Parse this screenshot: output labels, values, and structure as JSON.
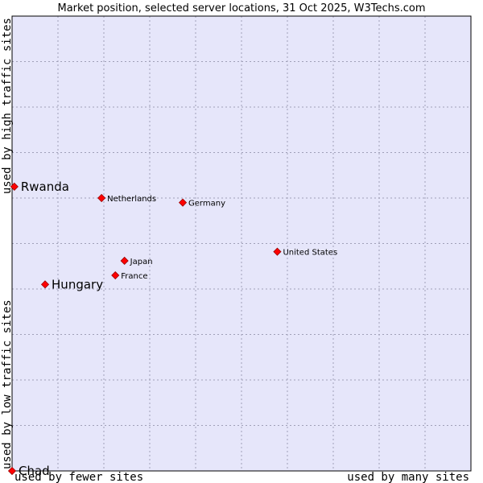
{
  "chart_data": {
    "type": "scatter",
    "title": "Market position, selected server locations, 31 Oct 2025, W3Techs.com",
    "xlabel_left": "used by fewer sites",
    "xlabel_right": "used by many sites",
    "ylabel_bottom": "used by low traffic sites",
    "ylabel_top": "used by high traffic sites",
    "xlim": [
      0,
      100
    ],
    "ylim": [
      0,
      100
    ],
    "grid": true,
    "colors": {
      "plot_bg": "#e6e6fa",
      "grid": "#a0a0b8",
      "marker": "#ff0000",
      "marker_edge": "#990000"
    },
    "points": [
      {
        "label": "Rwanda",
        "x": 0.5,
        "y": 62.5,
        "highlight": true
      },
      {
        "label": "Netherlands",
        "x": 19.5,
        "y": 60.0,
        "highlight": false
      },
      {
        "label": "Germany",
        "x": 37.2,
        "y": 59.0,
        "highlight": false
      },
      {
        "label": "United States",
        "x": 57.8,
        "y": 48.2,
        "highlight": false
      },
      {
        "label": "Japan",
        "x": 24.5,
        "y": 46.2,
        "highlight": false
      },
      {
        "label": "France",
        "x": 22.5,
        "y": 43.0,
        "highlight": false
      },
      {
        "label": "Hungary",
        "x": 7.2,
        "y": 41.0,
        "highlight": true
      },
      {
        "label": "Chad",
        "x": 0.0,
        "y": 0.0,
        "highlight": true
      }
    ]
  }
}
